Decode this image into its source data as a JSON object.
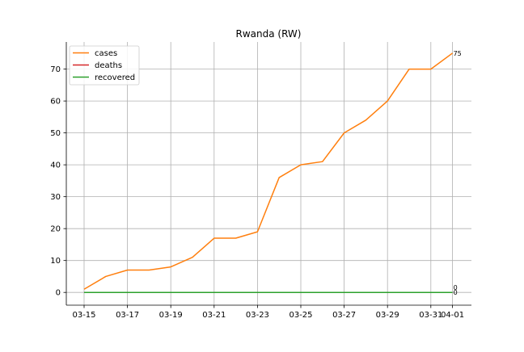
{
  "chart_data": {
    "type": "line",
    "title": "Rwanda (RW)",
    "xlabel": "",
    "ylabel": "",
    "x": [
      "03-15",
      "03-16",
      "03-17",
      "03-18",
      "03-19",
      "03-20",
      "03-21",
      "03-22",
      "03-23",
      "03-24",
      "03-25",
      "03-26",
      "03-27",
      "03-28",
      "03-29",
      "03-30",
      "03-31",
      "04-01"
    ],
    "x_tick_labels": [
      "03-15",
      "03-17",
      "03-19",
      "03-21",
      "03-23",
      "03-25",
      "03-27",
      "03-29",
      "03-31",
      "04-01"
    ],
    "y_tick_labels": [
      "0",
      "10",
      "20",
      "30",
      "40",
      "50",
      "60",
      "70"
    ],
    "ylim": [
      -4,
      78.5
    ],
    "y_ticks": [
      0,
      10,
      20,
      30,
      40,
      50,
      60,
      70
    ],
    "grid": true,
    "legend_position": "top-left",
    "series": [
      {
        "name": "cases",
        "color": "#ff7f0e",
        "values": [
          1,
          5,
          7,
          7,
          8,
          11,
          17,
          17,
          19,
          36,
          40,
          41,
          50,
          54,
          60,
          70,
          70,
          75
        ],
        "end_label": "75"
      },
      {
        "name": "deaths",
        "color": "#d62728",
        "values": [
          0,
          0,
          0,
          0,
          0,
          0,
          0,
          0,
          0,
          0,
          0,
          0,
          0,
          0,
          0,
          0,
          0,
          0
        ],
        "end_label": "0"
      },
      {
        "name": "recovered",
        "color": "#2ca02c",
        "values": [
          0,
          0,
          0,
          0,
          0,
          0,
          0,
          0,
          0,
          0,
          0,
          0,
          0,
          0,
          0,
          0,
          0,
          0
        ],
        "end_label": "0"
      }
    ]
  }
}
